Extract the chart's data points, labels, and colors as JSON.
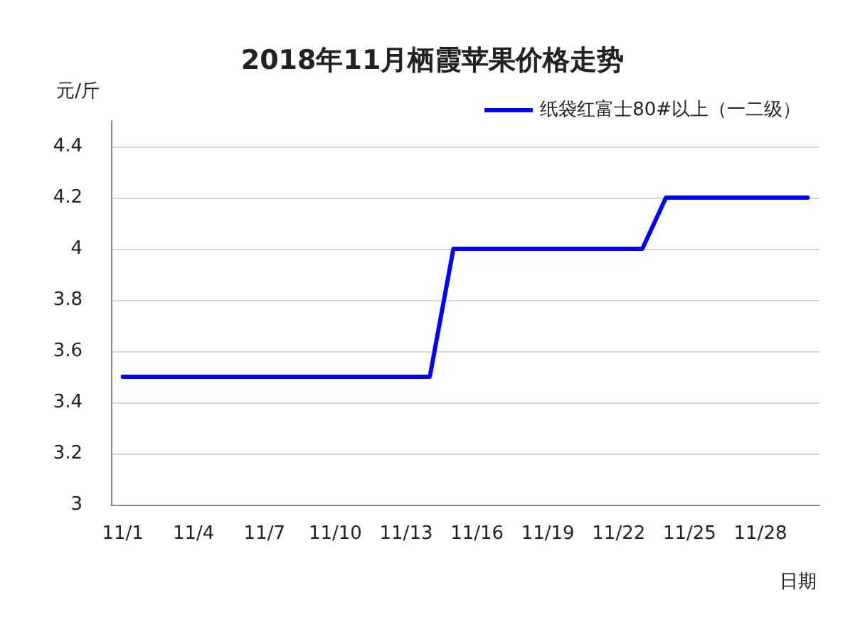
{
  "chart_data": {
    "type": "line",
    "title": "2018年11月栖霞苹果价格走势",
    "xlabel": "日期",
    "ylabel": "元/斤",
    "categories": [
      "11/1",
      null,
      null,
      "11/4",
      null,
      null,
      "11/7",
      null,
      null,
      "11/10",
      null,
      null,
      "11/13",
      null,
      null,
      "11/16",
      null,
      null,
      "11/19",
      null,
      null,
      "11/22",
      null,
      null,
      "11/25",
      null,
      null,
      "11/28",
      null,
      null
    ],
    "series": [
      {
        "name": "纸袋红富士80#以上（一二级）",
        "color": "#0000ff",
        "values": [
          3.5,
          3.5,
          3.5,
          3.5,
          3.5,
          3.5,
          3.5,
          3.5,
          3.5,
          3.5,
          3.5,
          3.5,
          3.5,
          3.5,
          4,
          4,
          4,
          4,
          4,
          4,
          4,
          4,
          4,
          4.2,
          4.2,
          4.2,
          4.2,
          4.2,
          4.2,
          4.2
        ]
      }
    ],
    "ylim": [
      3,
      4.5
    ],
    "yticks": [
      3,
      3.2,
      3.4,
      3.6,
      3.8,
      4,
      4.2,
      4.4
    ],
    "grid": "y",
    "legend": "top right",
    "marker": "none",
    "line_style": "solid"
  }
}
